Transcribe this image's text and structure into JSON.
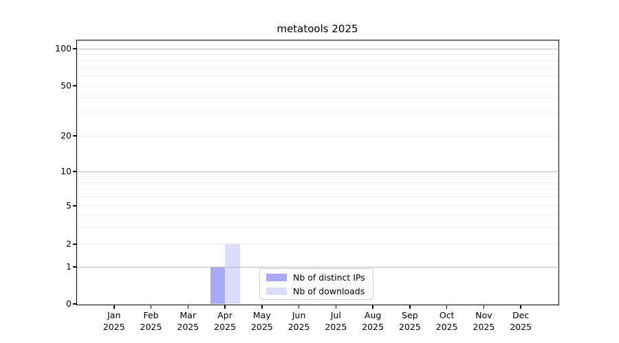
{
  "chart_data": {
    "type": "bar",
    "title": "metatools 2025",
    "categories": [
      {
        "month": "Jan",
        "year": "2025"
      },
      {
        "month": "Feb",
        "year": "2025"
      },
      {
        "month": "Mar",
        "year": "2025"
      },
      {
        "month": "Apr",
        "year": "2025"
      },
      {
        "month": "May",
        "year": "2025"
      },
      {
        "month": "Jun",
        "year": "2025"
      },
      {
        "month": "Jul",
        "year": "2025"
      },
      {
        "month": "Aug",
        "year": "2025"
      },
      {
        "month": "Sep",
        "year": "2025"
      },
      {
        "month": "Oct",
        "year": "2025"
      },
      {
        "month": "Nov",
        "year": "2025"
      },
      {
        "month": "Dec",
        "year": "2025"
      }
    ],
    "series": [
      {
        "name": "Nb of distinct IPs",
        "color": "#a9a9f6",
        "values": [
          0,
          0,
          0,
          1,
          0,
          0,
          0,
          0,
          0,
          0,
          0,
          0
        ]
      },
      {
        "name": "Nb of downloads",
        "color": "#dcdcfa",
        "values": [
          0,
          0,
          0,
          2,
          0,
          0,
          0,
          0,
          0,
          0,
          0,
          0
        ]
      }
    ],
    "y_axis": {
      "scale": "symlog",
      "tick_values": [
        0,
        1,
        2,
        5,
        10,
        20,
        50,
        100
      ],
      "major_gridline_values": [
        1,
        10,
        100
      ],
      "minor_gridline_values": [
        2,
        3,
        4,
        5,
        6,
        7,
        8,
        9,
        20,
        30,
        40,
        50,
        60,
        70,
        80,
        90
      ]
    },
    "legend": {
      "position": "lower center"
    },
    "colors": {
      "major_grid": "#b9b9b9",
      "minor_grid": "#ededed",
      "axis": "#000000",
      "legend_border": "#cccccc",
      "background": "#ffffff"
    }
  }
}
